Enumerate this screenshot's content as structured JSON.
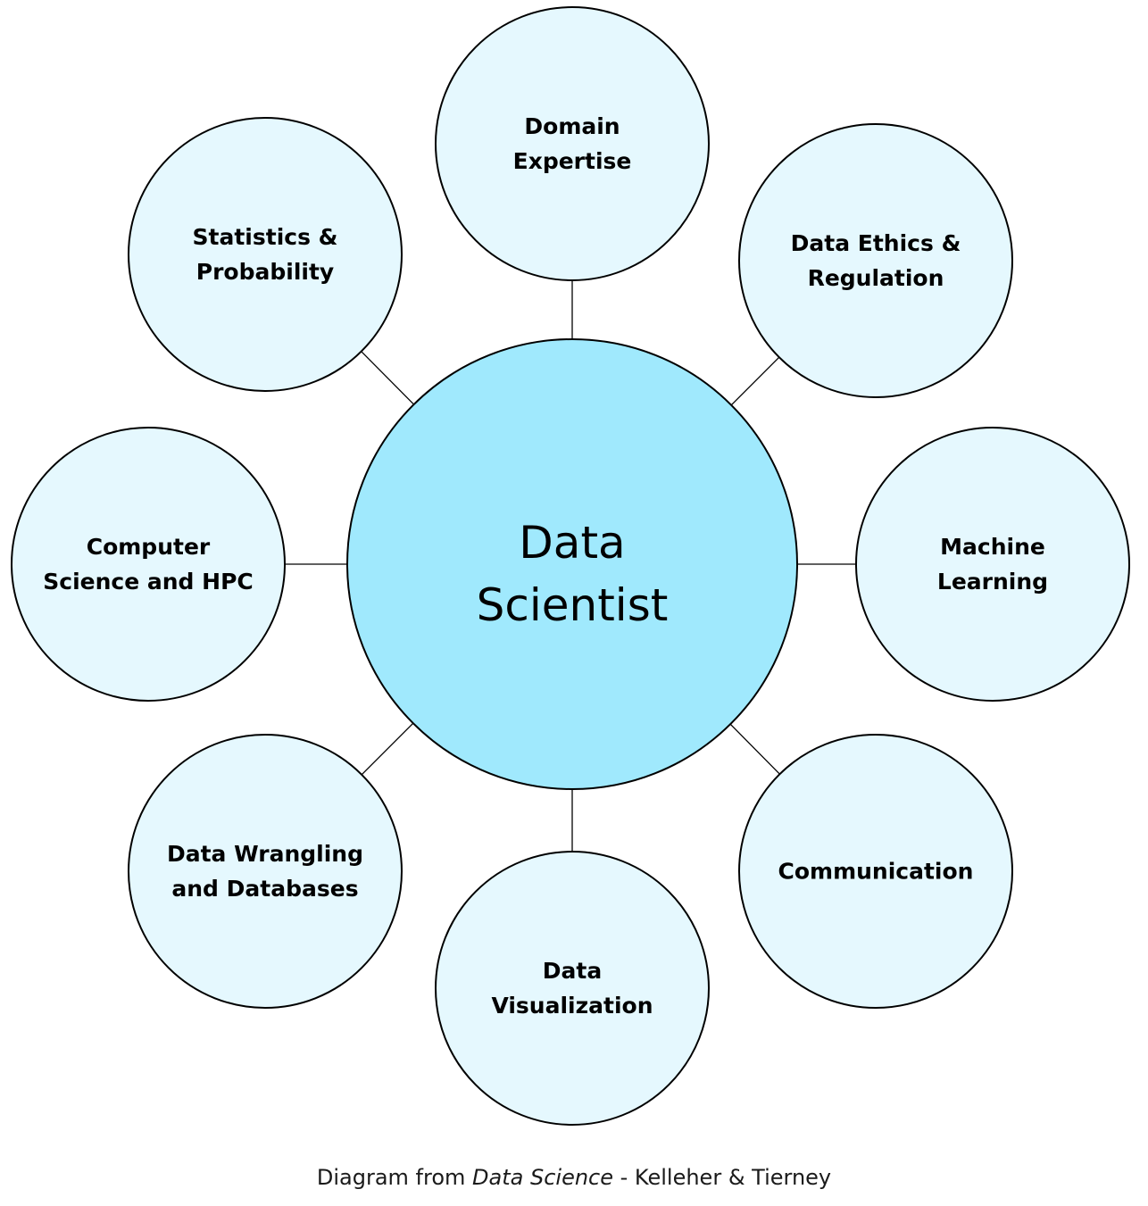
{
  "center": {
    "lines": [
      "Data",
      "Scientist"
    ],
    "fill": "#a0e9fd"
  },
  "satellite_fill": "#e5f8fe",
  "stroke_color": "#000000",
  "satellites": [
    {
      "lines": [
        "Domain",
        "Expertise"
      ]
    },
    {
      "lines": [
        "Data Ethics &",
        "Regulation"
      ]
    },
    {
      "lines": [
        "Machine",
        "Learning"
      ]
    },
    {
      "lines": [
        "Communication"
      ]
    },
    {
      "lines": [
        "Data",
        "Visualization"
      ]
    },
    {
      "lines": [
        "Data Wrangling",
        "and Databases"
      ]
    },
    {
      "lines": [
        "Computer",
        "Science and HPC"
      ]
    },
    {
      "lines": [
        "Statistics &",
        "Probability"
      ]
    }
  ],
  "caption": {
    "prefix": "Diagram from",
    "title": "Data Science",
    "suffix": "- Kelleher & Tierney"
  }
}
